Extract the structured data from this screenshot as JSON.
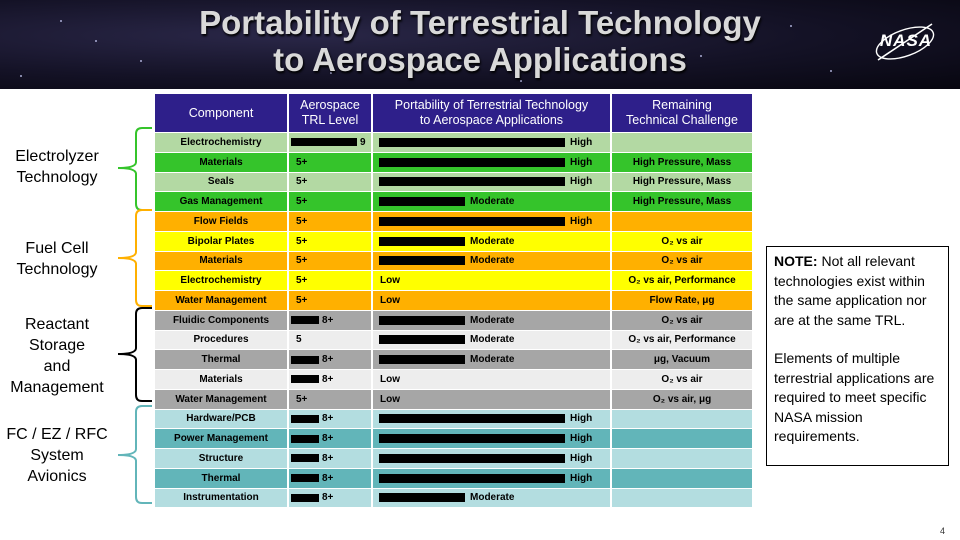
{
  "title_line1": "Portability of Terrestrial Technology",
  "title_line2": "to Aerospace Applications",
  "logo_text": "NASA",
  "table": {
    "headers": {
      "component": "Component",
      "trl_line1": "Aerospace",
      "trl_line2": "TRL Level",
      "portability_line1": "Portability of Terrestrial Technology",
      "portability_line2": "to Aerospace Applications",
      "challenge_line1": "Remaining",
      "challenge_line2": "Technical Challenge"
    },
    "rows": [
      {
        "component": "Electrochemistry",
        "trl": "9",
        "trl_fraction": 1.0,
        "portability": "High",
        "portability_fraction": 0.78,
        "challenge": "",
        "color": "#b3d9a3"
      },
      {
        "component": "Materials",
        "trl": "5+",
        "trl_fraction": 0,
        "portability": "High",
        "portability_fraction": 0.78,
        "challenge": "High Pressure, Mass",
        "color": "#35c42b"
      },
      {
        "component": "Seals",
        "trl": "5+",
        "trl_fraction": 0,
        "portability": "High",
        "portability_fraction": 0.78,
        "challenge": "High Pressure, Mass",
        "color": "#b3d9a3"
      },
      {
        "component": "Gas Management",
        "trl": "5+",
        "trl_fraction": 0,
        "portability": "Moderate",
        "portability_fraction": 0.36,
        "challenge": "High Pressure, Mass",
        "color": "#35c42b"
      },
      {
        "component": "Flow Fields",
        "trl": "5+",
        "trl_fraction": 0,
        "portability": "High",
        "portability_fraction": 0.78,
        "challenge": "",
        "color": "#ffb000"
      },
      {
        "component": "Bipolar Plates",
        "trl": "5+",
        "trl_fraction": 0,
        "portability": "Moderate",
        "portability_fraction": 0.36,
        "challenge": "O₂ vs air",
        "color": "#ffff00"
      },
      {
        "component": "Materials",
        "trl": "5+",
        "trl_fraction": 0,
        "portability": "Moderate",
        "portability_fraction": 0.36,
        "challenge": "O₂ vs air",
        "color": "#ffb000"
      },
      {
        "component": "Electrochemistry",
        "trl": "5+",
        "trl_fraction": 0,
        "portability": "Low",
        "portability_fraction": 0,
        "challenge": "O₂ vs air, Performance",
        "color": "#ffff00"
      },
      {
        "component": "Water Management",
        "trl": "5+",
        "trl_fraction": 0,
        "portability": "Low",
        "portability_fraction": 0,
        "challenge": "Flow Rate, μg",
        "color": "#ffb000"
      },
      {
        "component": "Fluidic Components",
        "trl": "8+",
        "trl_fraction": 0.42,
        "portability": "Moderate",
        "portability_fraction": 0.36,
        "challenge": "O₂ vs air",
        "color": "#a6a6a6"
      },
      {
        "component": "Procedures",
        "trl": "5",
        "trl_fraction": 0,
        "portability": "Moderate",
        "portability_fraction": 0.36,
        "challenge": "O₂ vs air, Performance",
        "color": "#ededed"
      },
      {
        "component": "Thermal",
        "trl": "8+",
        "trl_fraction": 0.42,
        "portability": "Moderate",
        "portability_fraction": 0.36,
        "challenge": "μg, Vacuum",
        "color": "#a6a6a6"
      },
      {
        "component": "Materials",
        "trl": "8+",
        "trl_fraction": 0.42,
        "portability": "Low",
        "portability_fraction": 0,
        "challenge": "O₂ vs air",
        "color": "#ededed"
      },
      {
        "component": "Water Management",
        "trl": "5+",
        "trl_fraction": 0,
        "portability": "Low",
        "portability_fraction": 0,
        "challenge": "O₂ vs air, μg",
        "color": "#a6a6a6"
      },
      {
        "component": "Hardware/PCB",
        "trl": "8+",
        "trl_fraction": 0.42,
        "portability": "High",
        "portability_fraction": 0.78,
        "challenge": "",
        "color": "#b3dde0"
      },
      {
        "component": "Power Management",
        "trl": "8+",
        "trl_fraction": 0.42,
        "portability": "High",
        "portability_fraction": 0.78,
        "challenge": "",
        "color": "#62b5b9"
      },
      {
        "component": "Structure",
        "trl": "8+",
        "trl_fraction": 0.42,
        "portability": "High",
        "portability_fraction": 0.78,
        "challenge": "",
        "color": "#b3dde0"
      },
      {
        "component": "Thermal",
        "trl": "8+",
        "trl_fraction": 0.42,
        "portability": "High",
        "portability_fraction": 0.78,
        "challenge": "",
        "color": "#62b5b9"
      },
      {
        "component": "Instrumentation",
        "trl": "8+",
        "trl_fraction": 0.42,
        "portability": "Moderate",
        "portability_fraction": 0.36,
        "challenge": "",
        "color": "#b3dde0"
      }
    ]
  },
  "groups": [
    {
      "lines": [
        "Electrolyzer",
        "Technology"
      ],
      "bracket_color": "#35c42b"
    },
    {
      "lines": [
        "Fuel Cell",
        "Technology"
      ],
      "bracket_color": "#ffb000"
    },
    {
      "lines": [
        "Reactant",
        "Storage",
        "and",
        "Management"
      ],
      "bracket_color": "#000000"
    },
    {
      "lines": [
        "FC / EZ / RFC",
        "System",
        "Avionics"
      ],
      "bracket_color": "#62b5b9"
    }
  ],
  "note": {
    "bold": "NOTE:",
    "text1": " Not all relevant technologies exist within the same application nor are at the same TRL.",
    "text2": "Elements of multiple terrestrial applications are required to meet specific NASA mission requirements."
  },
  "page_number": "4"
}
